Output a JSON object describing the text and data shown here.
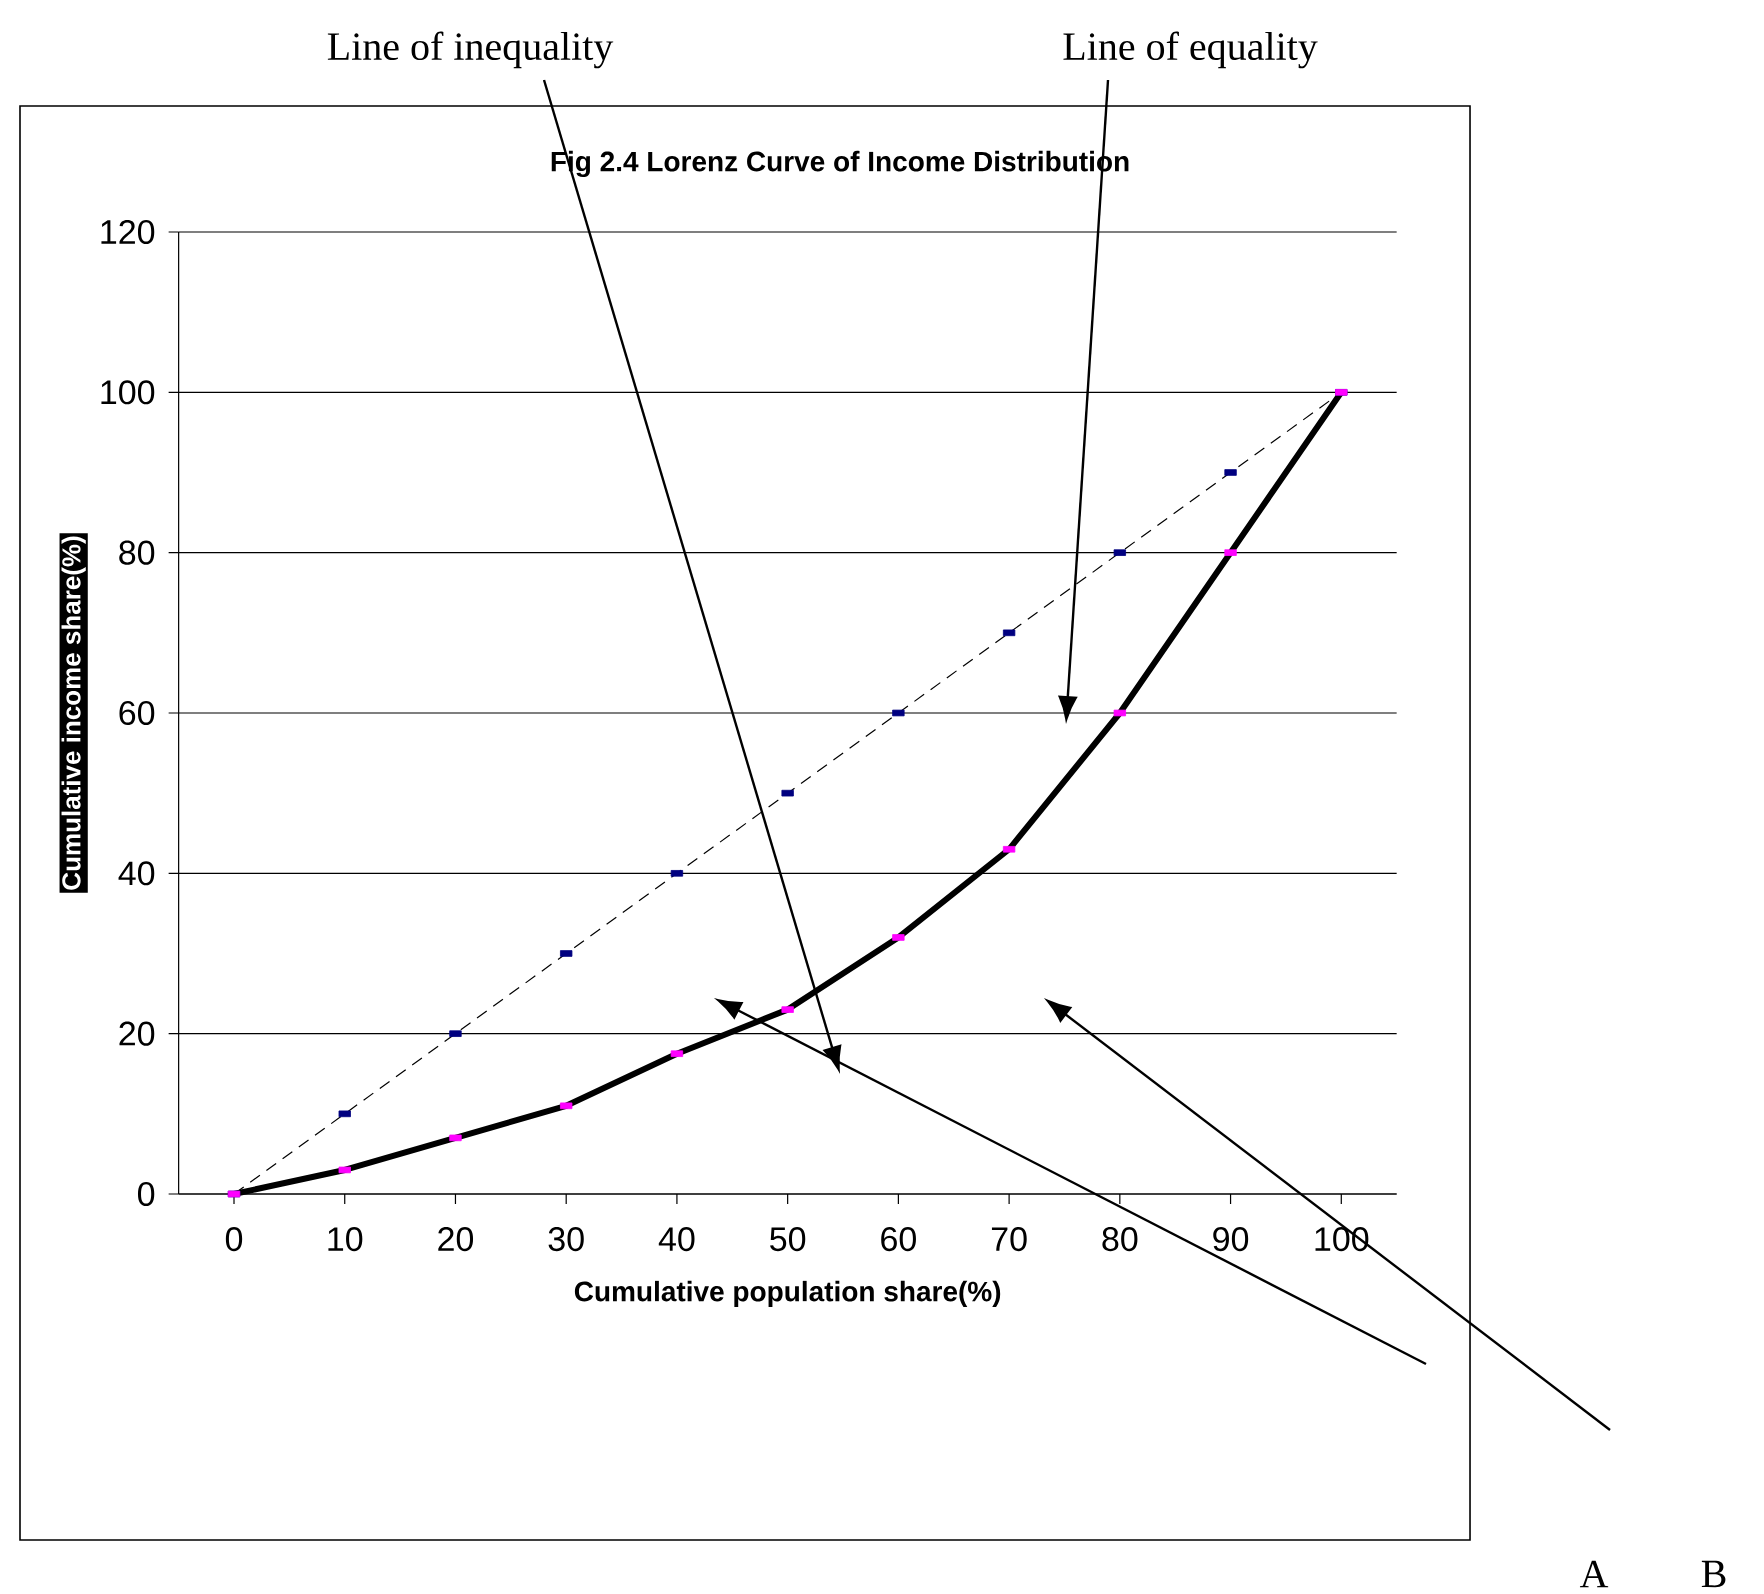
{
  "chart_data": {
    "type": "line",
    "title": "Fig 2.4 Lorenz Curve of Income Distribution",
    "xlabel": "Cumulative population share(%)",
    "ylabel": "Cumulative income share(%)",
    "categories": [
      "0",
      "10",
      "20",
      "30",
      "40",
      "50",
      "60",
      "70",
      "80",
      "90",
      "100"
    ],
    "series": [
      {
        "color": "#000000",
        "line_style": "dashed",
        "marker": "square",
        "colors": [
          "#000080",
          "#000080",
          "#000080",
          "#000080",
          "#000080",
          "#000080",
          "#000080",
          "#000080",
          "#000080",
          "#000080",
          "#000080"
        ],
        "values": [
          0,
          10,
          20,
          30,
          40,
          50,
          60,
          70,
          80,
          90,
          100
        ]
      },
      {
        "color": "#000000",
        "line_style": "solid",
        "marker": "square",
        "colors": [
          "#ff00ff",
          "#ff00ff",
          "#ff00ff",
          "#ff00ff",
          "#ff00ff",
          "#ff00ff",
          "#ff00ff",
          "#ff00ff",
          "#ff00ff",
          "#ff00ff",
          "#ff00ff"
        ],
        "values": [
          0,
          3,
          7,
          11,
          17.5,
          23,
          32,
          43,
          60,
          80,
          100
        ]
      }
    ],
    "ylim": [
      0,
      120
    ],
    "yticks": [
      0,
      20,
      40,
      60,
      80,
      100,
      120
    ],
    "grid": "y",
    "annotations": [
      "Line of inequality",
      "Line of equality",
      "A",
      "B"
    ]
  }
}
